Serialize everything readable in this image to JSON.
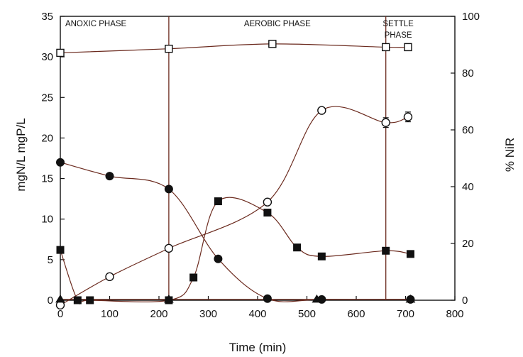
{
  "chart_data": {
    "type": "scatter",
    "xlabel": "Time (min)",
    "ylabel": "mgN/L   mgP/L",
    "y2label": "% NiR",
    "xlim": [
      0,
      800
    ],
    "ylim": [
      0,
      35
    ],
    "y2lim": [
      0,
      100
    ],
    "xticks": [
      "0",
      "100",
      "200",
      "300",
      "400",
      "500",
      "600",
      "700",
      "800"
    ],
    "yticks": [
      "0",
      "5",
      "10",
      "15",
      "20",
      "25",
      "30",
      "35"
    ],
    "y2ticks": [
      "0",
      "20",
      "40",
      "60",
      "80",
      "100"
    ],
    "phase_lines": [
      220,
      660
    ],
    "phases": [
      {
        "label": "ANOXIC PHASE",
        "x": 10
      },
      {
        "label": "AEROBIC PHASE",
        "x": 440
      },
      {
        "label": "SETTLE",
        "x": 685
      },
      {
        "label": "PHASE",
        "x": 685
      }
    ],
    "series": [
      {
        "marker": "open-square",
        "axis": "left",
        "x": [
          0,
          220,
          430,
          660,
          705
        ],
        "y": [
          30.5,
          31.0,
          31.6,
          31.2,
          31.2
        ]
      },
      {
        "marker": "filled-circle",
        "axis": "left",
        "x": [
          0,
          100,
          220,
          320,
          420,
          530,
          710
        ],
        "y": [
          17.0,
          15.3,
          13.7,
          5.1,
          0.2,
          0.1,
          0.1
        ]
      },
      {
        "marker": "open-circle",
        "axis": "left",
        "x": [
          0,
          100,
          220,
          420,
          530,
          660,
          705
        ],
        "y": [
          -0.6,
          2.9,
          6.4,
          12.1,
          23.4,
          21.9,
          22.6
        ],
        "err": [
          0,
          0,
          0,
          0,
          0,
          0.6,
          0.6
        ]
      },
      {
        "marker": "filled-square",
        "axis": "left",
        "x": [
          0,
          35,
          60,
          220,
          270,
          320,
          420,
          480,
          530,
          660,
          710
        ],
        "y": [
          6.2,
          0.0,
          0.0,
          0.0,
          2.8,
          12.2,
          10.8,
          6.5,
          5.4,
          6.1,
          5.7
        ]
      },
      {
        "marker": "filled-triangle",
        "axis": "left",
        "x": [
          0,
          220,
          520,
          710
        ],
        "y": [
          0.1,
          0.1,
          0.1,
          0.1
        ]
      }
    ]
  }
}
